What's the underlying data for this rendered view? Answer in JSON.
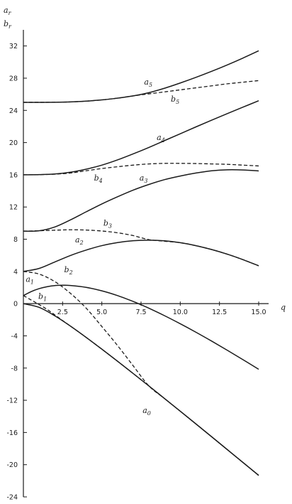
{
  "chart_data": {
    "type": "line",
    "y_axis_title_top": "a",
    "y_axis_title_top_sub": "r",
    "y_axis_title_bottom": "b",
    "y_axis_title_bottom_sub": "r",
    "x_axis_title": "q",
    "xlim": [
      0,
      15
    ],
    "ylim": [
      -24,
      34
    ],
    "x_ticks": [
      0,
      2.5,
      5.0,
      7.5,
      10.0,
      12.5,
      15.0
    ],
    "x_tick_labels": [
      "2.5",
      "5.0",
      "7.5",
      "10.0",
      "12.5",
      "15.0"
    ],
    "y_ticks": [
      -24,
      -20,
      -16,
      -12,
      -8,
      -4,
      0,
      4,
      8,
      12,
      16,
      20,
      24,
      28,
      32
    ],
    "y_tick_labels": [
      "-24",
      "-20",
      "-16",
      "-12",
      "-8",
      "-4",
      "0",
      "4",
      "8",
      "12",
      "16",
      "20",
      "24",
      "28",
      "32"
    ],
    "grid": false,
    "series": [
      {
        "name": "a",
        "sub": "0",
        "style": "solid",
        "x": [
          0,
          1,
          2,
          3,
          4,
          5,
          6,
          7,
          8,
          9,
          10,
          11,
          12,
          13,
          14,
          15
        ],
        "y": [
          0,
          -0.46,
          -1.51,
          -2.79,
          -4.19,
          -5.65,
          -7.15,
          -8.68,
          -10.22,
          -11.79,
          -13.36,
          -14.94,
          -16.53,
          -18.13,
          -19.73,
          -21.33
        ],
        "label_x": 7.6,
        "label_y": -13.6
      },
      {
        "name": "a",
        "sub": "1",
        "style": "solid",
        "x": [
          0,
          0.5,
          1,
          1.5,
          2,
          2.5,
          3,
          4,
          5,
          6,
          7,
          7.5,
          8,
          9,
          10,
          11,
          12,
          13,
          14,
          15
        ],
        "y": [
          1,
          1.5,
          1.86,
          2.1,
          2.24,
          2.28,
          2.25,
          2.02,
          1.59,
          1.0,
          0.27,
          -0.14,
          -0.57,
          -1.5,
          -2.5,
          -3.55,
          -4.65,
          -5.79,
          -6.96,
          -8.15
        ],
        "label_x": 0.15,
        "label_y": 2.7
      },
      {
        "name": "b",
        "sub": "1",
        "style": "dashed",
        "x": [
          0,
          0.5,
          1,
          1.5,
          2,
          2.5,
          3,
          4,
          5,
          6,
          7,
          7.5,
          8,
          9,
          10,
          11,
          12,
          13,
          14,
          15
        ],
        "y": [
          1,
          0.45,
          -0.11,
          -0.7,
          -1.39,
          -2.1,
          -2.79,
          -4.19,
          -5.65,
          -7.15,
          -8.68,
          -9.45,
          -10.22,
          -11.79,
          -13.36,
          -14.94,
          -16.53,
          -18.13,
          -19.73,
          -21.33
        ],
        "label_x": 0.95,
        "label_y": 0.6
      },
      {
        "name": "a",
        "sub": "2",
        "style": "solid",
        "x": [
          0,
          1,
          2,
          3,
          4,
          5,
          6,
          7,
          8,
          9,
          10,
          11,
          12,
          13,
          14,
          15
        ],
        "y": [
          4,
          4.37,
          5.17,
          5.98,
          6.65,
          7.2,
          7.58,
          7.81,
          7.88,
          7.8,
          7.57,
          7.2,
          6.72,
          6.14,
          5.46,
          4.7
        ],
        "label_x": 3.3,
        "label_y": 7.6
      },
      {
        "name": "b",
        "sub": "2",
        "style": "dashed",
        "x": [
          0,
          1,
          2,
          3,
          4,
          5,
          6,
          7,
          8,
          9,
          10,
          11,
          12,
          13,
          14,
          15
        ],
        "y": [
          4,
          3.67,
          2.74,
          1.28,
          -0.56,
          -2.84,
          -5.2,
          -7.72,
          -10.22,
          -11.79,
          -13.36,
          -14.94,
          -16.53,
          -18.13,
          -19.73,
          -21.33
        ],
        "label_x": 2.6,
        "label_y": 3.9
      },
      {
        "name": "a",
        "sub": "3",
        "style": "solid",
        "x": [
          0,
          1,
          2,
          3,
          4,
          5,
          6,
          7,
          8,
          9,
          10,
          11,
          12,
          13,
          14,
          15
        ],
        "y": [
          9,
          9.05,
          9.52,
          10.4,
          11.4,
          12.38,
          13.27,
          14.1,
          14.8,
          15.4,
          15.85,
          16.22,
          16.5,
          16.62,
          16.6,
          16.48
        ],
        "label_x": 7.4,
        "label_y": 15.3
      },
      {
        "name": "b",
        "sub": "3",
        "style": "dashed",
        "x": [
          0,
          1,
          2,
          3,
          4,
          5,
          6,
          7,
          8,
          9,
          10,
          11,
          12,
          13,
          14,
          15
        ],
        "y": [
          9,
          9.05,
          9.12,
          9.17,
          9.14,
          9.02,
          8.8,
          8.45,
          7.95,
          7.75,
          7.57,
          7.2,
          6.72,
          6.14,
          5.46,
          4.7
        ],
        "label_x": 5.1,
        "label_y": 9.7
      },
      {
        "name": "a",
        "sub": "4",
        "style": "solid",
        "x": [
          0,
          1,
          2,
          3,
          4,
          5,
          6,
          7,
          8,
          9,
          10,
          11,
          12,
          13,
          14,
          15
        ],
        "y": [
          16,
          16.02,
          16.1,
          16.32,
          16.7,
          17.2,
          17.85,
          18.6,
          19.4,
          20.25,
          21.1,
          21.95,
          22.78,
          23.6,
          24.4,
          25.2
        ],
        "label_x": 8.5,
        "label_y": 20.3
      },
      {
        "name": "b",
        "sub": "4",
        "style": "dashed",
        "x": [
          0,
          1,
          2,
          3,
          4,
          5,
          6,
          7,
          8,
          9,
          10,
          11,
          12,
          13,
          14,
          15
        ],
        "y": [
          16,
          16.02,
          16.08,
          16.22,
          16.5,
          16.78,
          17.0,
          17.2,
          17.35,
          17.42,
          17.42,
          17.4,
          17.35,
          17.3,
          17.2,
          17.1
        ],
        "label_x": 4.5,
        "label_y": 15.3
      },
      {
        "name": "a",
        "sub": "5",
        "style": "solid",
        "x": [
          0,
          1,
          2,
          3,
          4,
          5,
          6,
          7,
          8,
          9,
          10,
          11,
          12,
          13,
          14,
          15
        ],
        "y": [
          25,
          25.0,
          25.01,
          25.05,
          25.15,
          25.3,
          25.52,
          25.8,
          26.2,
          26.75,
          27.4,
          28.1,
          28.85,
          29.65,
          30.5,
          31.4
        ],
        "label_x": 7.7,
        "label_y": 27.2
      },
      {
        "name": "b",
        "sub": "5",
        "style": "dashed",
        "x": [
          0,
          1,
          2,
          3,
          4,
          5,
          6,
          7,
          8,
          9,
          10,
          11,
          12,
          13,
          14,
          15
        ],
        "y": [
          25,
          25.0,
          25.01,
          25.05,
          25.15,
          25.3,
          25.52,
          25.8,
          26.05,
          26.3,
          26.55,
          26.8,
          27.05,
          27.3,
          27.5,
          27.7
        ],
        "label_x": 9.4,
        "label_y": 25.1
      }
    ]
  }
}
